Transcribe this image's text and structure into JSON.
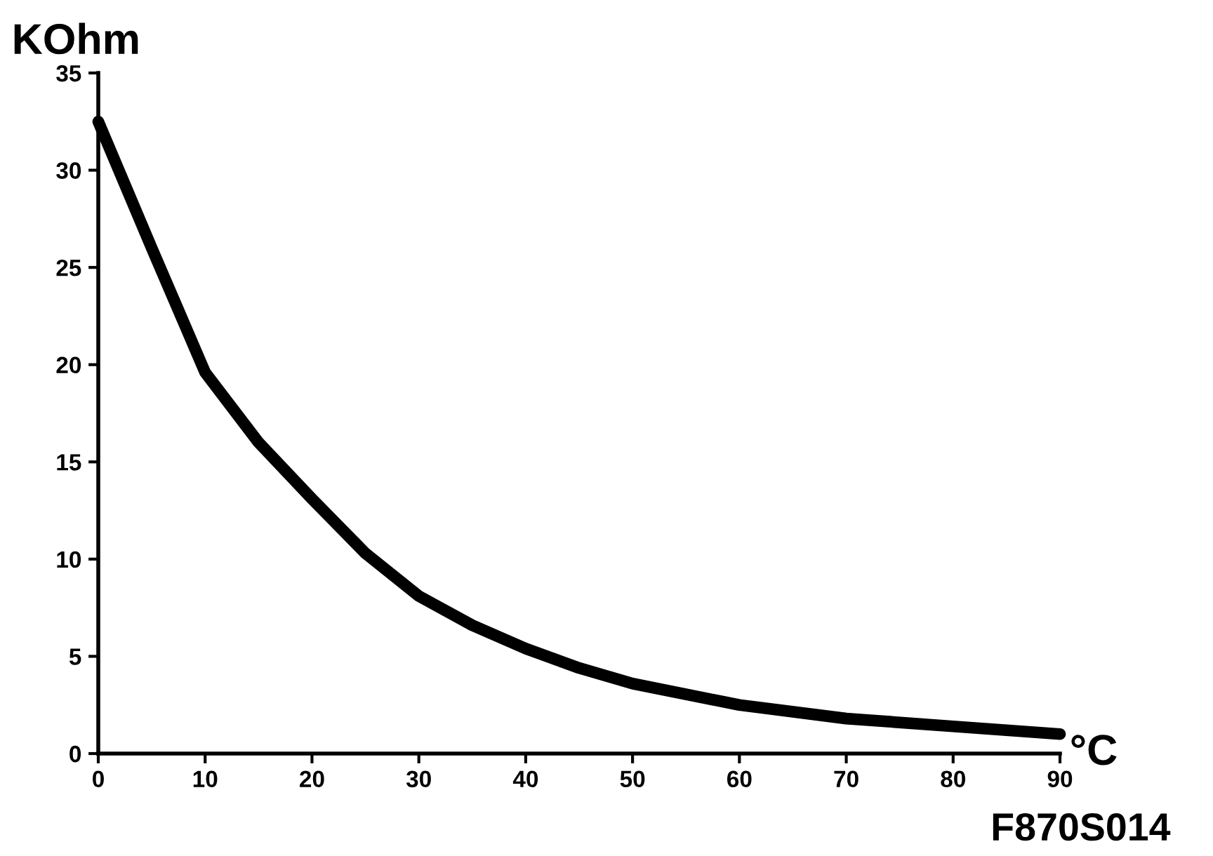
{
  "chart_data": {
    "type": "line",
    "ylabel": "KOhm",
    "xlabel": "°C",
    "annotations": [
      "F870S014"
    ],
    "x": [
      0,
      5,
      10,
      15,
      20,
      25,
      30,
      35,
      40,
      45,
      50,
      60,
      70,
      80,
      90
    ],
    "series": [
      {
        "color": "#000000",
        "values": [
          32.5,
          26,
          19.6,
          16,
          13.1,
          10.3,
          8.1,
          6.6,
          5.4,
          4.4,
          3.6,
          2.5,
          1.8,
          1.4,
          1.0
        ]
      }
    ],
    "xlim": [
      0,
      90
    ],
    "ylim": [
      0,
      35
    ],
    "xticks": [
      0,
      10,
      20,
      30,
      40,
      50,
      60,
      70,
      80,
      90
    ],
    "yticks": [
      0,
      5,
      10,
      15,
      20,
      25,
      30,
      35
    ],
    "grid": false,
    "legend": false,
    "marker": "none",
    "line_style": "solid"
  }
}
